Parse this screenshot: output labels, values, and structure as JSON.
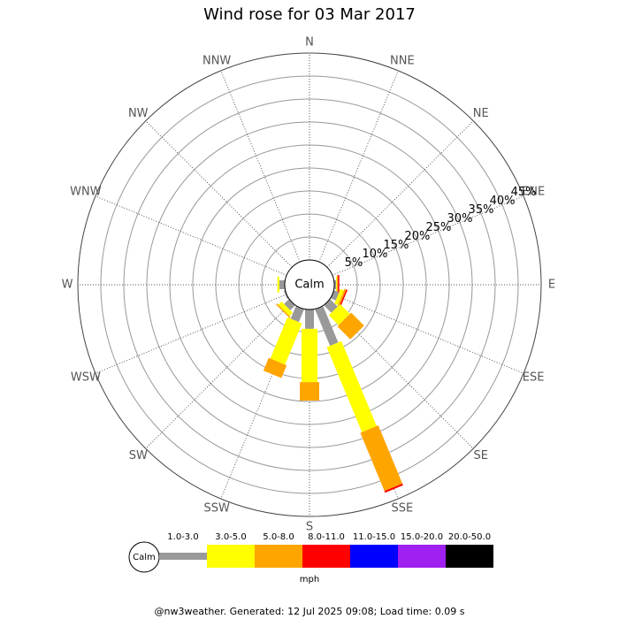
{
  "chart_data": {
    "type": "windrose",
    "title": "Wind rose for 03 Mar 2017",
    "calm_label": "Calm",
    "categories": [
      "N",
      "NNE",
      "NE",
      "ENE",
      "E",
      "ESE",
      "SE",
      "SSE",
      "S",
      "SSW",
      "SW",
      "WSW",
      "W",
      "WNW",
      "NW",
      "NNW"
    ],
    "rlim": [
      0,
      45
    ],
    "rticks": [
      {
        "value": 5,
        "label": "5%"
      },
      {
        "value": 10,
        "label": "10%"
      },
      {
        "value": 15,
        "label": "15%"
      },
      {
        "value": 20,
        "label": "20%"
      },
      {
        "value": 25,
        "label": "25%"
      },
      {
        "value": 30,
        "label": "30%"
      },
      {
        "value": 35,
        "label": "35%"
      },
      {
        "value": 40,
        "label": "40%"
      },
      {
        "value": 45,
        "label": "45%"
      }
    ],
    "units": "mph",
    "series": [
      {
        "name": "1.0-3.0",
        "color": "#999999",
        "values": [
          0,
          0,
          0,
          0,
          0.4,
          1.2,
          2.3,
          8.6,
          4.2,
          3.0,
          1.5,
          0.3,
          1.2,
          0,
          0,
          0
        ]
      },
      {
        "name": "3.0-5.0",
        "color": "#ffff00",
        "values": [
          0,
          0,
          0,
          0,
          0.2,
          0.8,
          3.0,
          20.0,
          11.6,
          9.7,
          1.0,
          0,
          0.4,
          0,
          0,
          0
        ]
      },
      {
        "name": "5.0-8.0",
        "color": "#ffa500",
        "values": [
          0,
          0,
          0,
          0,
          0.2,
          0.4,
          4.0,
          13.7,
          4.0,
          3.0,
          0.3,
          0,
          0,
          0,
          0,
          0
        ]
      },
      {
        "name": "8.0-11.0",
        "color": "#ff0000",
        "values": [
          0,
          0,
          0,
          0,
          0.3,
          0.3,
          0,
          0.4,
          0,
          0,
          0,
          0,
          0,
          0,
          0,
          0
        ]
      },
      {
        "name": "11.0-15.0",
        "color": "#0000ff",
        "values": [
          0,
          0,
          0,
          0,
          0,
          0,
          0,
          0,
          0,
          0,
          0,
          0,
          0,
          0,
          0,
          0
        ]
      },
      {
        "name": "15.0-20.0",
        "color": "#a020f0",
        "values": [
          0,
          0,
          0,
          0,
          0,
          0,
          0,
          0,
          0,
          0,
          0,
          0,
          0,
          0,
          0,
          0
        ]
      },
      {
        "name": "20.0-50.0",
        "color": "#000000",
        "values": [
          0,
          0,
          0,
          0,
          0,
          0,
          0,
          0,
          0,
          0,
          0,
          0,
          0,
          0,
          0,
          0
        ]
      }
    ],
    "footer": "@nw3weather.  Generated: 12 Jul 2025 09:08; Load time: 0.09 s"
  }
}
